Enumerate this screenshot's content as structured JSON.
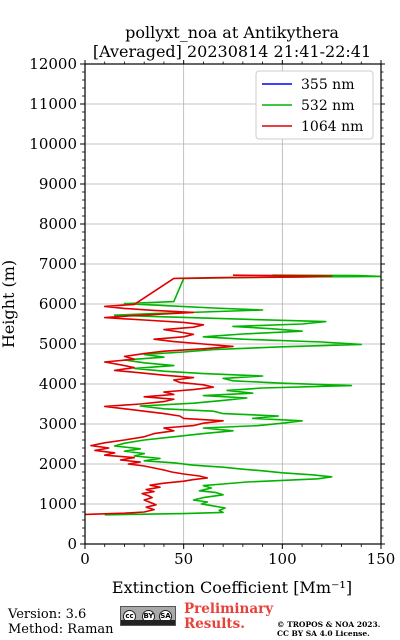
{
  "chart_data": {
    "type": "line",
    "title": [
      "pollyxt_noa at Antikythera",
      "[Averaged] 20230814 21:41-22:41"
    ],
    "xlabel": "Extinction Coefficient [Mm⁻¹]",
    "ylabel": "Height (m)",
    "xlim": [
      0,
      150
    ],
    "ylim": [
      0,
      12000
    ],
    "xticks": [
      0,
      50,
      100,
      150
    ],
    "yticks": [
      0,
      1000,
      2000,
      3000,
      4000,
      5000,
      6000,
      7000,
      8000,
      9000,
      10000,
      11000,
      12000
    ],
    "grid": true,
    "legend_position": "top-right",
    "series": [
      {
        "name": "355 nm",
        "color": "#0000ff",
        "points": []
      },
      {
        "name": "532 nm",
        "color": "#00b400",
        "points": [
          [
            10,
            730
          ],
          [
            50,
            760
          ],
          [
            70,
            790
          ],
          [
            68,
            840
          ],
          [
            71,
            900
          ],
          [
            64,
            960
          ],
          [
            59,
            1000
          ],
          [
            62,
            1050
          ],
          [
            55,
            1100
          ],
          [
            60,
            1160
          ],
          [
            70,
            1230
          ],
          [
            66,
            1290
          ],
          [
            58,
            1330
          ],
          [
            64,
            1400
          ],
          [
            60,
            1460
          ],
          [
            70,
            1500
          ],
          [
            82,
            1550
          ],
          [
            100,
            1590
          ],
          [
            118,
            1630
          ],
          [
            125,
            1680
          ],
          [
            115,
            1730
          ],
          [
            100,
            1780
          ],
          [
            90,
            1830
          ],
          [
            80,
            1870
          ],
          [
            70,
            1920
          ],
          [
            55,
            1970
          ],
          [
            45,
            2030
          ],
          [
            30,
            2080
          ],
          [
            38,
            2140
          ],
          [
            25,
            2200
          ],
          [
            30,
            2260
          ],
          [
            20,
            2320
          ],
          [
            28,
            2380
          ],
          [
            15,
            2450
          ],
          [
            20,
            2520
          ],
          [
            30,
            2600
          ],
          [
            45,
            2680
          ],
          [
            60,
            2760
          ],
          [
            75,
            2830
          ],
          [
            60,
            2900
          ],
          [
            88,
            2960
          ],
          [
            100,
            3020
          ],
          [
            110,
            3080
          ],
          [
            85,
            3140
          ],
          [
            98,
            3200
          ],
          [
            70,
            3260
          ],
          [
            65,
            3320
          ],
          [
            40,
            3380
          ],
          [
            28,
            3450
          ],
          [
            55,
            3520
          ],
          [
            70,
            3590
          ],
          [
            82,
            3650
          ],
          [
            60,
            3710
          ],
          [
            85,
            3770
          ],
          [
            72,
            3840
          ],
          [
            90,
            3900
          ],
          [
            135,
            3960
          ],
          [
            100,
            4020
          ],
          [
            75,
            4080
          ],
          [
            70,
            4140
          ],
          [
            90,
            4200
          ],
          [
            60,
            4260
          ],
          [
            40,
            4320
          ],
          [
            25,
            4390
          ],
          [
            45,
            4460
          ],
          [
            30,
            4530
          ],
          [
            20,
            4600
          ],
          [
            40,
            4670
          ],
          [
            30,
            4740
          ],
          [
            50,
            4800
          ],
          [
            65,
            4860
          ],
          [
            100,
            4930
          ],
          [
            140,
            4990
          ],
          [
            120,
            5050
          ],
          [
            80,
            5120
          ],
          [
            60,
            5180
          ],
          [
            80,
            5250
          ],
          [
            110,
            5320
          ],
          [
            95,
            5380
          ],
          [
            75,
            5440
          ],
          [
            110,
            5500
          ],
          [
            122,
            5560
          ],
          [
            80,
            5620
          ],
          [
            40,
            5680
          ],
          [
            15,
            5720
          ],
          [
            35,
            5760
          ],
          [
            60,
            5800
          ],
          [
            90,
            5850
          ],
          [
            65,
            5900
          ],
          [
            40,
            5960
          ],
          [
            20,
            6010
          ],
          [
            45,
            6060
          ],
          [
            50,
            6640
          ],
          [
            80,
            6660
          ],
          [
            120,
            6680
          ],
          [
            150,
            6690
          ],
          [
            138,
            6710
          ],
          [
            95,
            6720
          ]
        ]
      },
      {
        "name": "1064 nm",
        "color": "#e00000",
        "points": [
          [
            0,
            740
          ],
          [
            20,
            770
          ],
          [
            30,
            800
          ],
          [
            35,
            860
          ],
          [
            31,
            920
          ],
          [
            36,
            980
          ],
          [
            33,
            1040
          ],
          [
            30,
            1100
          ],
          [
            34,
            1160
          ],
          [
            32,
            1210
          ],
          [
            29,
            1260
          ],
          [
            35,
            1310
          ],
          [
            31,
            1360
          ],
          [
            38,
            1420
          ],
          [
            33,
            1470
          ],
          [
            40,
            1520
          ],
          [
            50,
            1570
          ],
          [
            55,
            1610
          ],
          [
            62,
            1650
          ],
          [
            58,
            1700
          ],
          [
            50,
            1750
          ],
          [
            44,
            1800
          ],
          [
            40,
            1850
          ],
          [
            35,
            1900
          ],
          [
            30,
            1950
          ],
          [
            22,
            2000
          ],
          [
            28,
            2050
          ],
          [
            18,
            2100
          ],
          [
            25,
            2160
          ],
          [
            10,
            2220
          ],
          [
            15,
            2280
          ],
          [
            5,
            2340
          ],
          [
            12,
            2400
          ],
          [
            3,
            2460
          ],
          [
            10,
            2530
          ],
          [
            20,
            2600
          ],
          [
            30,
            2680
          ],
          [
            35,
            2760
          ],
          [
            45,
            2830
          ],
          [
            40,
            2900
          ],
          [
            55,
            2960
          ],
          [
            60,
            3020
          ],
          [
            70,
            3080
          ],
          [
            50,
            3140
          ],
          [
            48,
            3200
          ],
          [
            40,
            3260
          ],
          [
            30,
            3320
          ],
          [
            20,
            3380
          ],
          [
            10,
            3440
          ],
          [
            28,
            3500
          ],
          [
            40,
            3560
          ],
          [
            45,
            3620
          ],
          [
            30,
            3680
          ],
          [
            45,
            3740
          ],
          [
            40,
            3800
          ],
          [
            55,
            3860
          ],
          [
            65,
            3920
          ],
          [
            60,
            3980
          ],
          [
            48,
            4040
          ],
          [
            45,
            4100
          ],
          [
            55,
            4160
          ],
          [
            40,
            4220
          ],
          [
            28,
            4280
          ],
          [
            15,
            4340
          ],
          [
            25,
            4410
          ],
          [
            18,
            4480
          ],
          [
            10,
            4550
          ],
          [
            25,
            4620
          ],
          [
            20,
            4690
          ],
          [
            30,
            4760
          ],
          [
            40,
            4820
          ],
          [
            60,
            4880
          ],
          [
            75,
            4940
          ],
          [
            60,
            5000
          ],
          [
            45,
            5060
          ],
          [
            35,
            5120
          ],
          [
            50,
            5180
          ],
          [
            55,
            5240
          ],
          [
            48,
            5300
          ],
          [
            40,
            5360
          ],
          [
            55,
            5420
          ],
          [
            60,
            5480
          ],
          [
            50,
            5540
          ],
          [
            30,
            5600
          ],
          [
            10,
            5660
          ],
          [
            25,
            5710
          ],
          [
            40,
            5750
          ],
          [
            55,
            5790
          ],
          [
            35,
            5840
          ],
          [
            20,
            5890
          ],
          [
            10,
            5940
          ],
          [
            25,
            5990
          ],
          [
            45,
            6640
          ],
          [
            70,
            6660
          ],
          [
            110,
            6680
          ],
          [
            125,
            6700
          ],
          [
            100,
            6710
          ],
          [
            75,
            6720
          ]
        ]
      }
    ]
  },
  "footer": {
    "version": "Version: 3.6",
    "method": "Method: Raman",
    "preliminary": "Preliminary Results.",
    "copyright_line1": "© TROPOS & NOA 2023.",
    "copyright_line2": "CC BY SA 4.0 License.",
    "badge_cc": "cc",
    "badge_by": "BY",
    "badge_sa": "SA"
  }
}
